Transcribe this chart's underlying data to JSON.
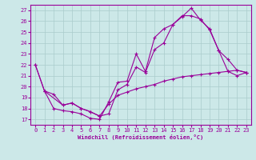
{
  "xlabel": "Windchill (Refroidissement éolien,°C)",
  "bg_color": "#cce8e8",
  "grid_color": "#aacccc",
  "line_color": "#990099",
  "xlim": [
    -0.5,
    23.5
  ],
  "ylim": [
    16.5,
    27.5
  ],
  "xticks": [
    0,
    1,
    2,
    3,
    4,
    5,
    6,
    7,
    8,
    9,
    10,
    11,
    12,
    13,
    14,
    15,
    16,
    17,
    18,
    19,
    20,
    21,
    22,
    23
  ],
  "yticks": [
    17,
    18,
    19,
    20,
    21,
    22,
    23,
    24,
    25,
    26,
    27
  ],
  "line1_x": [
    0,
    1,
    2,
    3,
    4,
    5,
    6,
    7,
    8,
    9,
    10,
    11,
    12,
    13,
    14,
    15,
    16,
    17,
    18,
    19,
    20,
    21,
    22,
    23
  ],
  "line1_y": [
    22,
    19.6,
    18.0,
    17.8,
    17.7,
    17.5,
    17.1,
    17.0,
    18.6,
    20.4,
    20.5,
    23.0,
    21.4,
    24.5,
    25.3,
    25.7,
    26.4,
    27.2,
    26.1,
    25.3,
    23.3,
    22.5,
    21.5,
    21.3
  ],
  "line2_x": [
    0,
    1,
    3,
    4,
    5,
    6,
    7,
    8,
    9,
    10,
    11,
    12,
    13,
    14,
    15,
    16,
    17,
    18,
    19,
    20,
    21,
    22,
    23
  ],
  "line2_y": [
    22,
    19.6,
    18.3,
    18.5,
    18.0,
    17.7,
    17.3,
    17.5,
    19.7,
    20.2,
    21.8,
    21.3,
    23.4,
    24.0,
    25.7,
    26.5,
    26.5,
    26.2,
    25.2,
    23.3,
    21.4,
    21.0,
    21.3
  ],
  "line3_x": [
    1,
    2,
    3,
    4,
    5,
    6,
    7,
    8,
    9,
    10,
    11,
    12,
    13,
    14,
    15,
    16,
    17,
    18,
    19,
    20,
    21,
    22,
    23
  ],
  "line3_y": [
    19.6,
    19.3,
    18.3,
    18.5,
    18.0,
    17.7,
    17.3,
    18.4,
    19.2,
    19.5,
    19.8,
    20.0,
    20.2,
    20.5,
    20.7,
    20.9,
    21.0,
    21.1,
    21.2,
    21.3,
    21.4,
    21.5,
    21.3
  ]
}
